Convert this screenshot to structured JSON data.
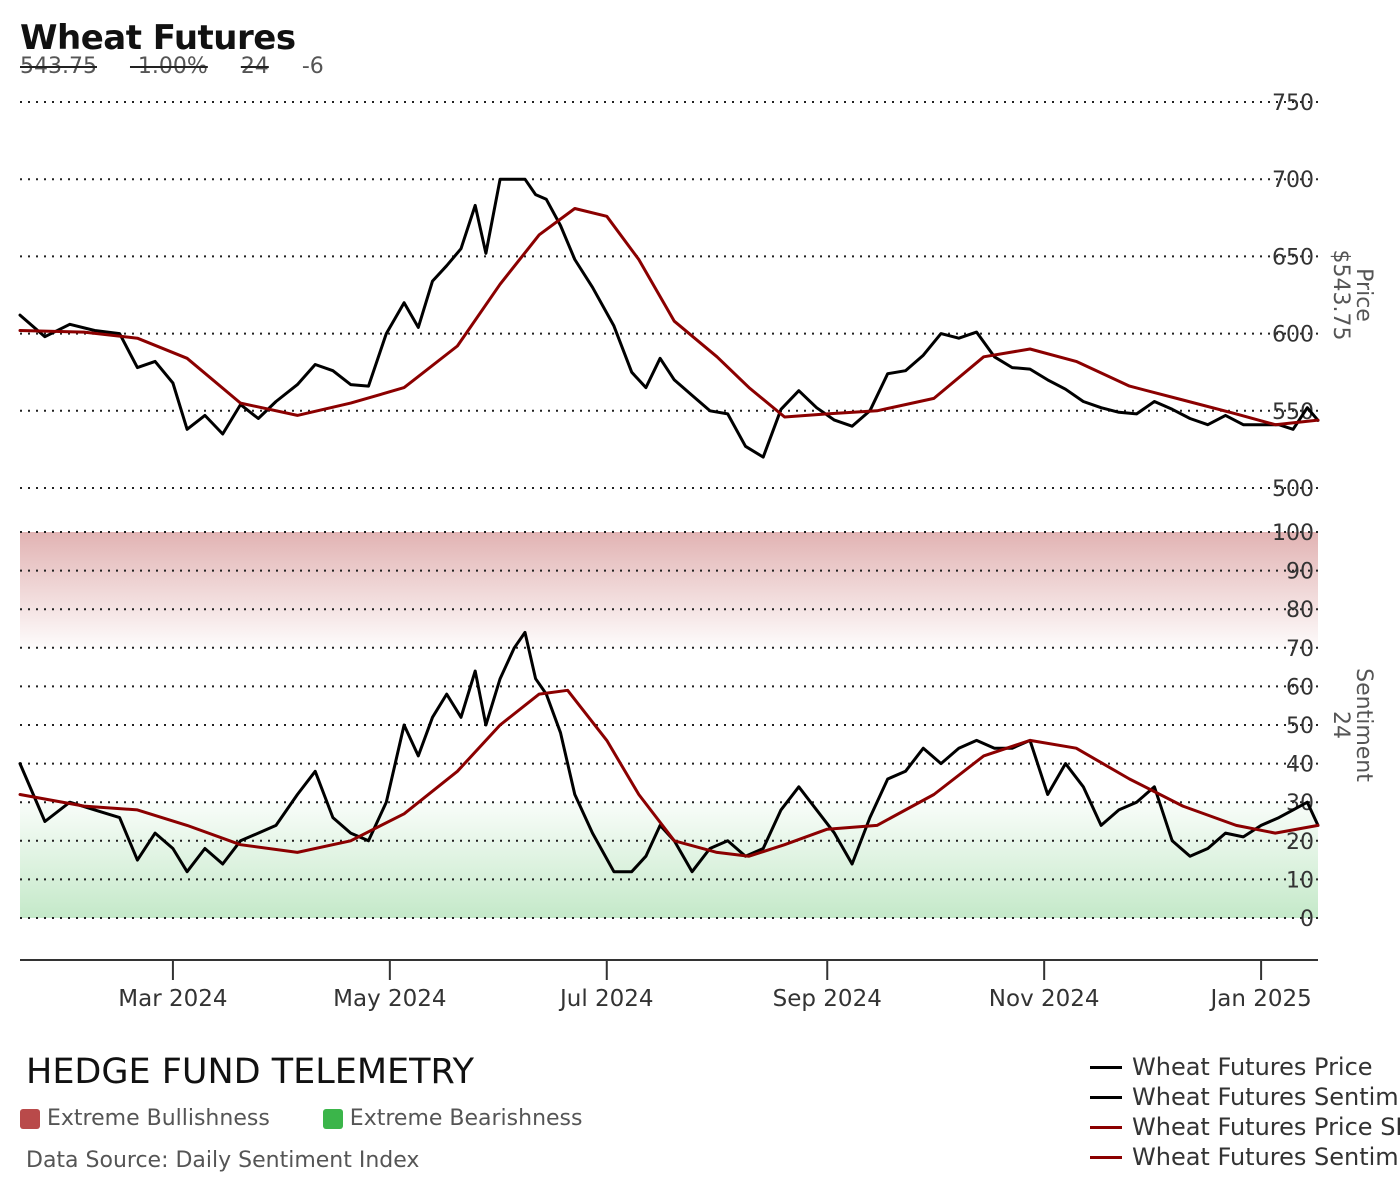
{
  "header": {
    "title": "Wheat Futures",
    "price": "543.75",
    "change_pct": "-1.00%",
    "sentiment": "24",
    "sentiment_change": "-6"
  },
  "footer": {
    "brand": "HEDGE FUND TELEMETRY",
    "zone_bull_label": "Extreme Bullishness",
    "zone_bear_label": "Extreme Bearishness",
    "source": "Data Source: Daily Sentiment Index"
  },
  "colors": {
    "price_line": "#000000",
    "sma_line": "#8b0000",
    "bull_zone": "#b94a4a",
    "bear_zone": "#3bb54a",
    "grid": "#222222"
  },
  "chart_data": [
    {
      "type": "line",
      "panel": "price",
      "ylabel": "Price",
      "ylabel_value": "$543.75",
      "ylim": [
        500,
        750
      ],
      "yticks": [
        500,
        550,
        600,
        650,
        700,
        750
      ],
      "x_range": [
        "2024-01-18",
        "2025-01-17"
      ],
      "xticks": [
        {
          "date": "2024-03-01",
          "label": "Mar 2024"
        },
        {
          "date": "2024-05-01",
          "label": "May 2024"
        },
        {
          "date": "2024-07-01",
          "label": "Jul 2024"
        },
        {
          "date": "2024-09-01",
          "label": "Sep 2024"
        },
        {
          "date": "2024-11-01",
          "label": "Nov 2024"
        },
        {
          "date": "2025-01-01",
          "label": "Jan 2025"
        }
      ],
      "grid": true,
      "series": [
        {
          "name": "Wheat Futures Price",
          "points": [
            [
              "2024-01-18",
              612
            ],
            [
              "2024-01-25",
              598
            ],
            [
              "2024-02-01",
              606
            ],
            [
              "2024-02-08",
              602
            ],
            [
              "2024-02-15",
              600
            ],
            [
              "2024-02-20",
              578
            ],
            [
              "2024-02-25",
              582
            ],
            [
              "2024-03-01",
              568
            ],
            [
              "2024-03-05",
              538
            ],
            [
              "2024-03-10",
              547
            ],
            [
              "2024-03-15",
              535
            ],
            [
              "2024-03-20",
              554
            ],
            [
              "2024-03-25",
              545
            ],
            [
              "2024-03-30",
              556
            ],
            [
              "2024-04-05",
              567
            ],
            [
              "2024-04-10",
              580
            ],
            [
              "2024-04-15",
              576
            ],
            [
              "2024-04-20",
              567
            ],
            [
              "2024-04-25",
              566
            ],
            [
              "2024-04-30",
              600
            ],
            [
              "2024-05-05",
              620
            ],
            [
              "2024-05-09",
              604
            ],
            [
              "2024-05-13",
              634
            ],
            [
              "2024-05-17",
              644
            ],
            [
              "2024-05-21",
              655
            ],
            [
              "2024-05-25",
              683
            ],
            [
              "2024-05-28",
              652
            ],
            [
              "2024-06-01",
              700
            ],
            [
              "2024-06-05",
              700
            ],
            [
              "2024-06-08",
              700
            ],
            [
              "2024-06-11",
              690
            ],
            [
              "2024-06-14",
              687
            ],
            [
              "2024-06-18",
              670
            ],
            [
              "2024-06-22",
              648
            ],
            [
              "2024-06-27",
              630
            ],
            [
              "2024-07-03",
              605
            ],
            [
              "2024-07-08",
              575
            ],
            [
              "2024-07-12",
              565
            ],
            [
              "2024-07-16",
              584
            ],
            [
              "2024-07-20",
              570
            ],
            [
              "2024-07-25",
              560
            ],
            [
              "2024-07-30",
              550
            ],
            [
              "2024-08-04",
              548
            ],
            [
              "2024-08-09",
              527
            ],
            [
              "2024-08-14",
              520
            ],
            [
              "2024-08-19",
              551
            ],
            [
              "2024-08-24",
              563
            ],
            [
              "2024-08-29",
              552
            ],
            [
              "2024-09-03",
              544
            ],
            [
              "2024-09-08",
              540
            ],
            [
              "2024-09-13",
              550
            ],
            [
              "2024-09-18",
              574
            ],
            [
              "2024-09-23",
              576
            ],
            [
              "2024-09-28",
              586
            ],
            [
              "2024-10-03",
              600
            ],
            [
              "2024-10-08",
              597
            ],
            [
              "2024-10-13",
              601
            ],
            [
              "2024-10-18",
              585
            ],
            [
              "2024-10-23",
              578
            ],
            [
              "2024-10-28",
              577
            ],
            [
              "2024-11-02",
              570
            ],
            [
              "2024-11-07",
              564
            ],
            [
              "2024-11-12",
              556
            ],
            [
              "2024-11-17",
              552
            ],
            [
              "2024-11-22",
              549
            ],
            [
              "2024-11-27",
              548
            ],
            [
              "2024-12-02",
              556
            ],
            [
              "2024-12-07",
              551
            ],
            [
              "2024-12-12",
              545
            ],
            [
              "2024-12-17",
              541
            ],
            [
              "2024-12-22",
              547
            ],
            [
              "2024-12-27",
              541
            ],
            [
              "2025-01-01",
              541
            ],
            [
              "2025-01-06",
              541
            ],
            [
              "2025-01-10",
              538
            ],
            [
              "2025-01-14",
              552
            ],
            [
              "2025-01-17",
              543.75
            ]
          ]
        },
        {
          "name": "Wheat Futures Price SMA",
          "points": [
            [
              "2024-01-18",
              602
            ],
            [
              "2024-02-05",
              601
            ],
            [
              "2024-02-20",
              597
            ],
            [
              "2024-03-05",
              584
            ],
            [
              "2024-03-20",
              555
            ],
            [
              "2024-04-05",
              547
            ],
            [
              "2024-04-20",
              555
            ],
            [
              "2024-05-05",
              565
            ],
            [
              "2024-05-20",
              592
            ],
            [
              "2024-06-01",
              632
            ],
            [
              "2024-06-12",
              664
            ],
            [
              "2024-06-22",
              681
            ],
            [
              "2024-07-01",
              676
            ],
            [
              "2024-07-10",
              648
            ],
            [
              "2024-07-20",
              608
            ],
            [
              "2024-08-01",
              585
            ],
            [
              "2024-08-10",
              565
            ],
            [
              "2024-08-20",
              546
            ],
            [
              "2024-09-01",
              548
            ],
            [
              "2024-09-15",
              550
            ],
            [
              "2024-10-01",
              558
            ],
            [
              "2024-10-15",
              585
            ],
            [
              "2024-10-28",
              590
            ],
            [
              "2024-11-10",
              582
            ],
            [
              "2024-11-25",
              566
            ],
            [
              "2024-12-10",
              557
            ],
            [
              "2024-12-25",
              548
            ],
            [
              "2025-01-05",
              541
            ],
            [
              "2025-01-17",
              544
            ]
          ]
        }
      ]
    },
    {
      "type": "line",
      "panel": "sentiment",
      "ylabel": "Sentiment",
      "ylabel_value": "24",
      "ylim": [
        0,
        100
      ],
      "yticks": [
        0,
        10,
        20,
        30,
        40,
        50,
        60,
        70,
        80,
        90,
        100
      ],
      "bands": [
        {
          "name": "Extreme Bullishness",
          "from": 70,
          "to": 100
        },
        {
          "name": "Extreme Bearishness",
          "from": 0,
          "to": 30
        }
      ],
      "grid": true,
      "series": [
        {
          "name": "Wheat Futures Sentiment",
          "points": [
            [
              "2024-01-18",
              40
            ],
            [
              "2024-01-25",
              25
            ],
            [
              "2024-02-01",
              30
            ],
            [
              "2024-02-08",
              28
            ],
            [
              "2024-02-15",
              26
            ],
            [
              "2024-02-20",
              15
            ],
            [
              "2024-02-25",
              22
            ],
            [
              "2024-03-01",
              18
            ],
            [
              "2024-03-05",
              12
            ],
            [
              "2024-03-10",
              18
            ],
            [
              "2024-03-15",
              14
            ],
            [
              "2024-03-20",
              20
            ],
            [
              "2024-03-25",
              22
            ],
            [
              "2024-03-30",
              24
            ],
            [
              "2024-04-05",
              32
            ],
            [
              "2024-04-10",
              38
            ],
            [
              "2024-04-15",
              26
            ],
            [
              "2024-04-20",
              22
            ],
            [
              "2024-04-25",
              20
            ],
            [
              "2024-04-30",
              30
            ],
            [
              "2024-05-05",
              50
            ],
            [
              "2024-05-09",
              42
            ],
            [
              "2024-05-13",
              52
            ],
            [
              "2024-05-17",
              58
            ],
            [
              "2024-05-21",
              52
            ],
            [
              "2024-05-25",
              64
            ],
            [
              "2024-05-28",
              50
            ],
            [
              "2024-06-01",
              62
            ],
            [
              "2024-06-05",
              70
            ],
            [
              "2024-06-08",
              74
            ],
            [
              "2024-06-11",
              62
            ],
            [
              "2024-06-14",
              58
            ],
            [
              "2024-06-18",
              48
            ],
            [
              "2024-06-22",
              32
            ],
            [
              "2024-06-27",
              22
            ],
            [
              "2024-07-03",
              12
            ],
            [
              "2024-07-08",
              12
            ],
            [
              "2024-07-12",
              16
            ],
            [
              "2024-07-16",
              24
            ],
            [
              "2024-07-20",
              20
            ],
            [
              "2024-07-25",
              12
            ],
            [
              "2024-07-30",
              18
            ],
            [
              "2024-08-04",
              20
            ],
            [
              "2024-08-09",
              16
            ],
            [
              "2024-08-14",
              18
            ],
            [
              "2024-08-19",
              28
            ],
            [
              "2024-08-24",
              34
            ],
            [
              "2024-08-29",
              28
            ],
            [
              "2024-09-03",
              22
            ],
            [
              "2024-09-08",
              14
            ],
            [
              "2024-09-13",
              26
            ],
            [
              "2024-09-18",
              36
            ],
            [
              "2024-09-23",
              38
            ],
            [
              "2024-09-28",
              44
            ],
            [
              "2024-10-03",
              40
            ],
            [
              "2024-10-08",
              44
            ],
            [
              "2024-10-13",
              46
            ],
            [
              "2024-10-18",
              44
            ],
            [
              "2024-10-23",
              44
            ],
            [
              "2024-10-28",
              46
            ],
            [
              "2024-11-02",
              32
            ],
            [
              "2024-11-07",
              40
            ],
            [
              "2024-11-12",
              34
            ],
            [
              "2024-11-17",
              24
            ],
            [
              "2024-11-22",
              28
            ],
            [
              "2024-11-27",
              30
            ],
            [
              "2024-12-02",
              34
            ],
            [
              "2024-12-07",
              20
            ],
            [
              "2024-12-12",
              16
            ],
            [
              "2024-12-17",
              18
            ],
            [
              "2024-12-22",
              22
            ],
            [
              "2024-12-27",
              21
            ],
            [
              "2025-01-01",
              24
            ],
            [
              "2025-01-06",
              26
            ],
            [
              "2025-01-10",
              28
            ],
            [
              "2025-01-14",
              30
            ],
            [
              "2025-01-17",
              24
            ]
          ]
        },
        {
          "name": "Wheat Futures Sentiment SMA",
          "points": [
            [
              "2024-01-18",
              32
            ],
            [
              "2024-02-05",
              29
            ],
            [
              "2024-02-20",
              28
            ],
            [
              "2024-03-05",
              24
            ],
            [
              "2024-03-20",
              19
            ],
            [
              "2024-04-05",
              17
            ],
            [
              "2024-04-20",
              20
            ],
            [
              "2024-05-05",
              27
            ],
            [
              "2024-05-20",
              38
            ],
            [
              "2024-06-01",
              50
            ],
            [
              "2024-06-12",
              58
            ],
            [
              "2024-06-20",
              59
            ],
            [
              "2024-07-01",
              46
            ],
            [
              "2024-07-10",
              32
            ],
            [
              "2024-07-20",
              20
            ],
            [
              "2024-08-01",
              17
            ],
            [
              "2024-08-10",
              16
            ],
            [
              "2024-08-20",
              19
            ],
            [
              "2024-09-01",
              23
            ],
            [
              "2024-09-15",
              24
            ],
            [
              "2024-10-01",
              32
            ],
            [
              "2024-10-15",
              42
            ],
            [
              "2024-10-28",
              46
            ],
            [
              "2024-11-10",
              44
            ],
            [
              "2024-11-25",
              36
            ],
            [
              "2024-12-10",
              29
            ],
            [
              "2024-12-25",
              24
            ],
            [
              "2025-01-05",
              22
            ],
            [
              "2025-01-17",
              24
            ]
          ]
        }
      ]
    }
  ],
  "legend": [
    {
      "label": "Wheat Futures Price",
      "color": "#000000"
    },
    {
      "label": "Wheat Futures Sentiment",
      "color": "#000000"
    },
    {
      "label": "Wheat Futures Price SMA",
      "color": "#8b0000"
    },
    {
      "label": "Wheat Futures Sentiment SMA",
      "color": "#8b0000"
    }
  ]
}
